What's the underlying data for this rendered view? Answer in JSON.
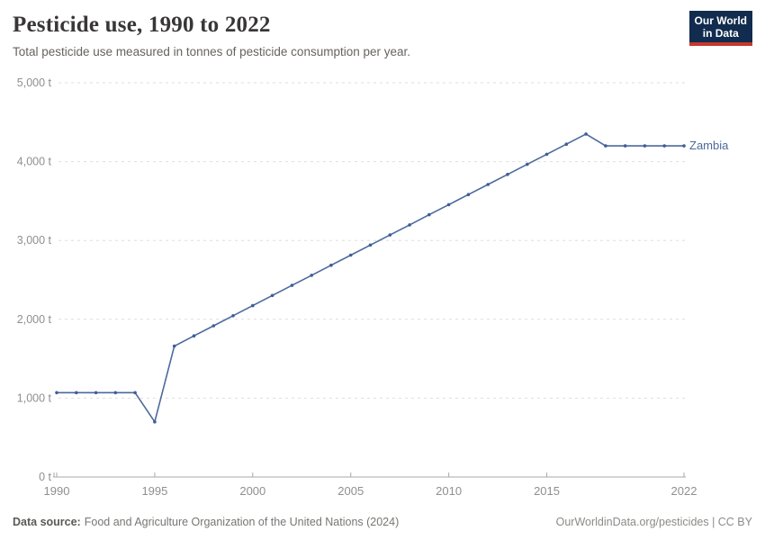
{
  "header": {
    "title": "Pesticide use, 1990 to 2022",
    "subtitle": "Total pesticide use measured in tonnes of pesticide consumption per year.",
    "logo": {
      "line1": "Our World",
      "line2": "in Data",
      "bg_color": "#112c4e",
      "accent_color": "#c5392e"
    }
  },
  "chart_data": {
    "type": "line",
    "title": "Pesticide use, 1990 to 2022",
    "entity": "Zambia",
    "unit": "t",
    "grid": true,
    "legend_position": "right-of-line-end",
    "xlim": [
      1990,
      2022
    ],
    "ylim": [
      0,
      5000
    ],
    "x_ticks": [
      1990,
      1995,
      2000,
      2005,
      2010,
      2015,
      2022
    ],
    "y_ticks": [
      0,
      1000,
      2000,
      3000,
      4000,
      5000
    ],
    "y_tick_labels": [
      "0 t",
      "1,000 t",
      "2,000 t",
      "3,000 t",
      "4,000 t",
      "5,000 t"
    ],
    "x": [
      1990,
      1991,
      1992,
      1993,
      1994,
      1995,
      1996,
      1997,
      1998,
      1999,
      2000,
      2001,
      2002,
      2003,
      2004,
      2005,
      2006,
      2007,
      2008,
      2009,
      2010,
      2011,
      2012,
      2013,
      2014,
      2015,
      2016,
      2017,
      2018,
      2019,
      2020,
      2021,
      2022
    ],
    "series": [
      {
        "name": "Zambia",
        "values": [
          1070,
          1070,
          1070,
          1070,
          1070,
          700,
          1660,
          1790,
          1918,
          2046,
          2174,
          2302,
          2430,
          2558,
          2686,
          2814,
          2942,
          3070,
          3198,
          3326,
          3454,
          3582,
          3710,
          3838,
          3966,
          4094,
          4222,
          4350,
          4200,
          4200,
          4200,
          4200,
          4200
        ]
      }
    ],
    "colors": {
      "line": "#4c6a9c",
      "marker": "#3f5d99",
      "entity_label": "#4c6a9c",
      "grid": "#dedede",
      "axis": "#a8a8a8",
      "tick_label": "#8f8f8f"
    }
  },
  "footer": {
    "source_label": "Data source:",
    "source_text": "Food and Agriculture Organization of the United Nations (2024)",
    "link_text": "OurWorldinData.org/pesticides | CC BY"
  }
}
